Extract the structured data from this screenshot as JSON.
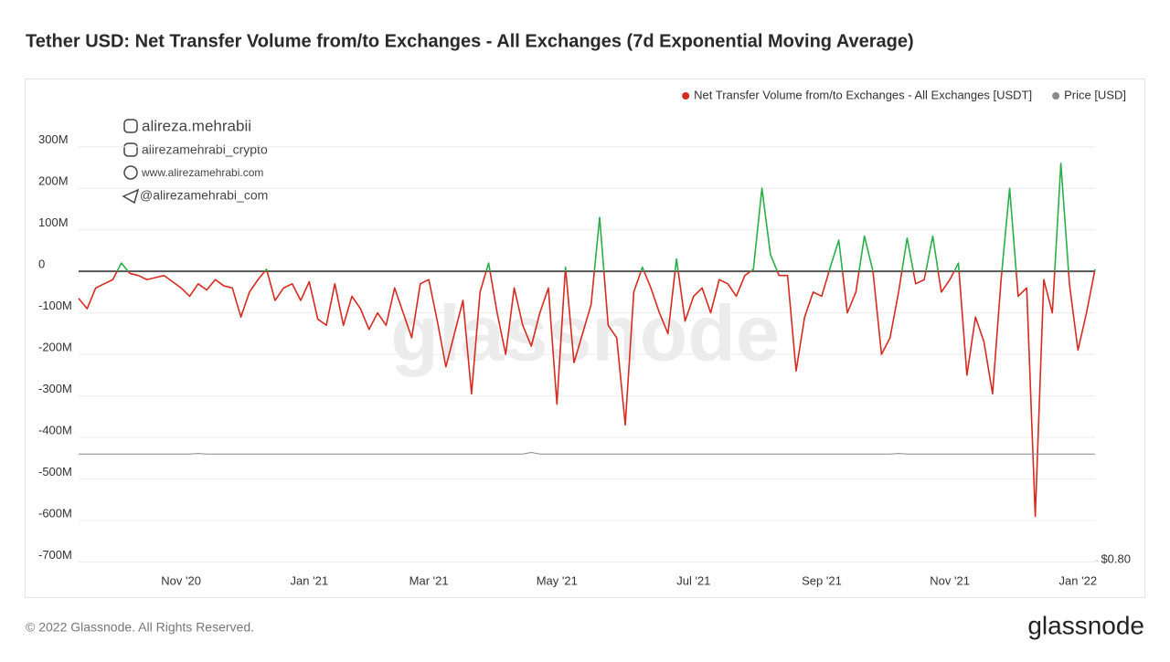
{
  "chart_data": {
    "type": "line",
    "title": "Tether USD: Net Transfer Volume from/to Exchanges - All Exchanges (7d Exponential Moving Average)",
    "categories": [
      null,
      null,
      null,
      null,
      null,
      null,
      null,
      null,
      null,
      null,
      null,
      null,
      "Nov '20",
      null,
      null,
      null,
      null,
      null,
      null,
      null,
      null,
      null,
      null,
      null,
      null,
      null,
      null,
      "Jan '21",
      null,
      null,
      null,
      null,
      null,
      null,
      null,
      null,
      null,
      null,
      null,
      null,
      null,
      "Mar '21",
      null,
      null,
      null,
      null,
      null,
      null,
      null,
      null,
      null,
      null,
      null,
      null,
      null,
      null,
      "May '21",
      null,
      null,
      null,
      null,
      null,
      null,
      null,
      null,
      null,
      null,
      null,
      null,
      null,
      null,
      null,
      "Jul '21",
      null,
      null,
      null,
      null,
      null,
      null,
      null,
      null,
      null,
      null,
      null,
      null,
      null,
      null,
      "Sep '21",
      null,
      null,
      null,
      null,
      null,
      null,
      null,
      null,
      null,
      null,
      null,
      null,
      null,
      null,
      "Nov '21",
      null,
      null,
      null,
      null,
      null,
      null,
      null,
      null,
      null,
      null,
      null,
      null,
      null,
      null,
      "Jan '22",
      null,
      null
    ],
    "series": [
      {
        "name": "Net Transfer Volume from/to Exchanges - All Exchanges [USDT]",
        "color": "#d62b20",
        "positive_color": "#2bae4a",
        "values": [
          -65,
          -90,
          -40,
          -30,
          -20,
          20,
          -5,
          -10,
          -20,
          -15,
          -10,
          -25,
          -40,
          -60,
          -30,
          -45,
          -20,
          -35,
          -40,
          -110,
          -50,
          -20,
          5,
          -70,
          -40,
          -30,
          -70,
          -25,
          -115,
          -130,
          -30,
          -130,
          -60,
          -90,
          -140,
          -100,
          -130,
          -40,
          -100,
          -160,
          -30,
          -20,
          -120,
          -230,
          -150,
          -70,
          -295,
          -50,
          20,
          -100,
          -200,
          -40,
          -130,
          -180,
          -100,
          -40,
          -320,
          10,
          -220,
          -150,
          -80,
          130,
          -130,
          -160,
          -370,
          -50,
          10,
          -40,
          -100,
          -150,
          30,
          -120,
          -60,
          -40,
          -100,
          -20,
          -30,
          -60,
          -10,
          5,
          200,
          40,
          -10,
          -10,
          -240,
          -110,
          -50,
          -60,
          10,
          75,
          -100,
          -50,
          85,
          0,
          -200,
          -160,
          -50,
          80,
          -30,
          -20,
          85,
          -50,
          -20,
          20,
          -250,
          -110,
          -170,
          -295,
          -20,
          200,
          -60,
          -40,
          -590,
          -20,
          -100,
          260,
          -30,
          -190,
          -100,
          5
        ]
      },
      {
        "name": "Price [USD]",
        "color": "#8a8a8a",
        "axis": "y2",
        "values": [
          1,
          1,
          1,
          1,
          1,
          1,
          1,
          1,
          1,
          1,
          1,
          1,
          1,
          1,
          1.001,
          1,
          1,
          1,
          1,
          1,
          1,
          1,
          1,
          1,
          1,
          1,
          1,
          1,
          1,
          1,
          1,
          1,
          1,
          1,
          1,
          1,
          1,
          1,
          1,
          1,
          1,
          1,
          1,
          1,
          1,
          1,
          1,
          1,
          1,
          1,
          1,
          1,
          1,
          1.003,
          1,
          1,
          1,
          1,
          1,
          1,
          1,
          1,
          1,
          1,
          1,
          1,
          1,
          1,
          1,
          1,
          1,
          1,
          1,
          1,
          1,
          1,
          1,
          1,
          1,
          1,
          1,
          1,
          1,
          1,
          1,
          1,
          1,
          1,
          1,
          1,
          1,
          1,
          1,
          1,
          1,
          1,
          1.001,
          1,
          1,
          1,
          1,
          1,
          1,
          1,
          1,
          1,
          1,
          1,
          1,
          1,
          1,
          1,
          1,
          1,
          1,
          1,
          1,
          1,
          1,
          1
        ]
      }
    ],
    "ylim": [
      -710,
      460
    ],
    "yticks": [
      {
        "value": -700,
        "label": "-700M"
      },
      {
        "value": -600,
        "label": "-600M"
      },
      {
        "value": -500,
        "label": "-500M"
      },
      {
        "value": -400,
        "label": "-400M"
      },
      {
        "value": -300,
        "label": "-300M"
      },
      {
        "value": -200,
        "label": "-200M"
      },
      {
        "value": -100,
        "label": "-100M"
      },
      0,
      {
        "value": 100,
        "label": "100M"
      },
      {
        "value": 200,
        "label": "200M"
      },
      {
        "value": 300,
        "label": "300M"
      }
    ],
    "y2lim": [
      0.79,
      1.7
    ],
    "y2ticks": [
      {
        "value": 0.8,
        "label": "$0.80"
      }
    ],
    "grid": true,
    "legend": "top-right",
    "footer": "© 2022 Glassnode. All Rights Reserved.",
    "brand": "glassnode",
    "watermarks": [
      "alireza.mehrabii",
      "alirezamehrabi_crypto",
      "www.alirezamehrabi.com",
      "@alirezamehrabi_com"
    ]
  }
}
